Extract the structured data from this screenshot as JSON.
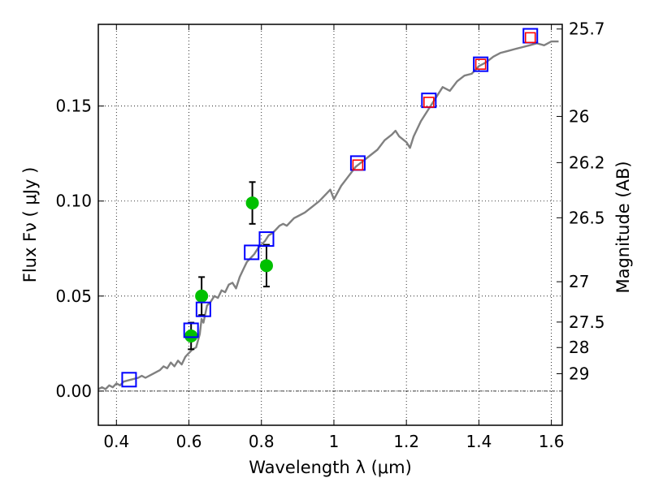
{
  "chart_data": {
    "type": "scatter",
    "xlabel": "Wavelength  λ (μm)",
    "ylabel": "Flux  Fν  ( μJy )",
    "ylabel_right": "Magnitude (AB)",
    "xlim": [
      0.35,
      1.63
    ],
    "ylim": [
      -0.018,
      0.193
    ],
    "grid": true,
    "x_ticks": [
      {
        "value": 0.4,
        "label": "0.4"
      },
      {
        "value": 0.6,
        "label": "0.6"
      },
      {
        "value": 0.8,
        "label": "0.8"
      },
      {
        "value": 1.0,
        "label": "1"
      },
      {
        "value": 1.2,
        "label": "1.2"
      },
      {
        "value": 1.4,
        "label": "1.4"
      },
      {
        "value": 1.6,
        "label": "1.6"
      }
    ],
    "y_ticks": [
      {
        "value": 0.0,
        "label": "0.00"
      },
      {
        "value": 0.05,
        "label": "0.05"
      },
      {
        "value": 0.1,
        "label": "0.10"
      },
      {
        "value": 0.15,
        "label": "0.15"
      }
    ],
    "mag_ticks": [
      {
        "value": 25.7,
        "label": "25.7"
      },
      {
        "value": 26.0,
        "label": "26"
      },
      {
        "value": 26.2,
        "label": "26.2"
      },
      {
        "value": 26.5,
        "label": "26.5"
      },
      {
        "value": 27.0,
        "label": "27"
      },
      {
        "value": 27.5,
        "label": "27.5"
      },
      {
        "value": 28.0,
        "label": "28"
      },
      {
        "value": 29.0,
        "label": "29"
      }
    ],
    "series": [
      {
        "kind": "line",
        "color": "#808080",
        "points": [
          [
            0.35,
            0.001
          ],
          [
            0.36,
            0.002
          ],
          [
            0.37,
            0.001
          ],
          [
            0.38,
            0.003
          ],
          [
            0.39,
            0.002
          ],
          [
            0.4,
            0.004
          ],
          [
            0.41,
            0.003
          ],
          [
            0.42,
            0.005
          ],
          [
            0.44,
            0.006
          ],
          [
            0.46,
            0.007
          ],
          [
            0.47,
            0.008
          ],
          [
            0.48,
            0.007
          ],
          [
            0.5,
            0.009
          ],
          [
            0.52,
            0.011
          ],
          [
            0.53,
            0.013
          ],
          [
            0.54,
            0.012
          ],
          [
            0.55,
            0.015
          ],
          [
            0.56,
            0.013
          ],
          [
            0.57,
            0.016
          ],
          [
            0.58,
            0.014
          ],
          [
            0.59,
            0.018
          ],
          [
            0.6,
            0.02
          ],
          [
            0.61,
            0.022
          ],
          [
            0.62,
            0.023
          ],
          [
            0.63,
            0.03
          ],
          [
            0.635,
            0.038
          ],
          [
            0.64,
            0.036
          ],
          [
            0.65,
            0.045
          ],
          [
            0.66,
            0.047
          ],
          [
            0.67,
            0.05
          ],
          [
            0.68,
            0.049
          ],
          [
            0.69,
            0.053
          ],
          [
            0.7,
            0.052
          ],
          [
            0.71,
            0.056
          ],
          [
            0.72,
            0.057
          ],
          [
            0.73,
            0.054
          ],
          [
            0.74,
            0.06
          ],
          [
            0.75,
            0.064
          ],
          [
            0.76,
            0.068
          ],
          [
            0.77,
            0.07
          ],
          [
            0.78,
            0.072
          ],
          [
            0.79,
            0.075
          ],
          [
            0.8,
            0.077
          ],
          [
            0.81,
            0.079
          ],
          [
            0.82,
            0.082
          ],
          [
            0.83,
            0.083
          ],
          [
            0.84,
            0.085
          ],
          [
            0.85,
            0.087
          ],
          [
            0.86,
            0.088
          ],
          [
            0.87,
            0.087
          ],
          [
            0.88,
            0.089
          ],
          [
            0.89,
            0.091
          ],
          [
            0.9,
            0.092
          ],
          [
            0.92,
            0.094
          ],
          [
            0.94,
            0.097
          ],
          [
            0.96,
            0.1
          ],
          [
            0.98,
            0.104
          ],
          [
            0.99,
            0.106
          ],
          [
            1.0,
            0.101
          ],
          [
            1.02,
            0.108
          ],
          [
            1.04,
            0.113
          ],
          [
            1.06,
            0.118
          ],
          [
            1.08,
            0.121
          ],
          [
            1.1,
            0.124
          ],
          [
            1.12,
            0.127
          ],
          [
            1.14,
            0.132
          ],
          [
            1.16,
            0.135
          ],
          [
            1.17,
            0.137
          ],
          [
            1.18,
            0.134
          ],
          [
            1.2,
            0.131
          ],
          [
            1.21,
            0.128
          ],
          [
            1.22,
            0.134
          ],
          [
            1.24,
            0.142
          ],
          [
            1.26,
            0.148
          ],
          [
            1.28,
            0.154
          ],
          [
            1.3,
            0.16
          ],
          [
            1.32,
            0.158
          ],
          [
            1.34,
            0.163
          ],
          [
            1.36,
            0.166
          ],
          [
            1.38,
            0.167
          ],
          [
            1.4,
            0.171
          ],
          [
            1.42,
            0.173
          ],
          [
            1.44,
            0.176
          ],
          [
            1.46,
            0.178
          ],
          [
            1.48,
            0.179
          ],
          [
            1.5,
            0.18
          ],
          [
            1.52,
            0.181
          ],
          [
            1.54,
            0.182
          ],
          [
            1.56,
            0.183
          ],
          [
            1.58,
            0.182
          ],
          [
            1.6,
            0.184
          ],
          [
            1.62,
            0.184
          ]
        ]
      },
      {
        "kind": "points",
        "marker": "circle",
        "color": "#00c000",
        "points": [
          {
            "x": 0.606,
            "y": 0.029,
            "err": 0.007
          },
          {
            "x": 0.635,
            "y": 0.05,
            "err": 0.01
          },
          {
            "x": 0.775,
            "y": 0.099,
            "err": 0.011
          },
          {
            "x": 0.814,
            "y": 0.066,
            "err": 0.011
          }
        ]
      },
      {
        "kind": "points",
        "marker": "square",
        "color": "#0000ff",
        "points": [
          {
            "x": 0.435,
            "y": 0.006
          },
          {
            "x": 0.606,
            "y": 0.032
          },
          {
            "x": 0.64,
            "y": 0.043
          },
          {
            "x": 0.773,
            "y": 0.073
          },
          {
            "x": 0.814,
            "y": 0.08
          },
          {
            "x": 1.066,
            "y": 0.12
          },
          {
            "x": 1.262,
            "y": 0.153
          },
          {
            "x": 1.405,
            "y": 0.172
          },
          {
            "x": 1.542,
            "y": 0.187
          }
        ]
      },
      {
        "kind": "points",
        "marker": "square",
        "color": "#ff0000",
        "points": [
          {
            "x": 1.066,
            "y": 0.119
          },
          {
            "x": 1.262,
            "y": 0.152
          },
          {
            "x": 1.405,
            "y": 0.172
          },
          {
            "x": 1.542,
            "y": 0.186
          }
        ]
      }
    ]
  }
}
